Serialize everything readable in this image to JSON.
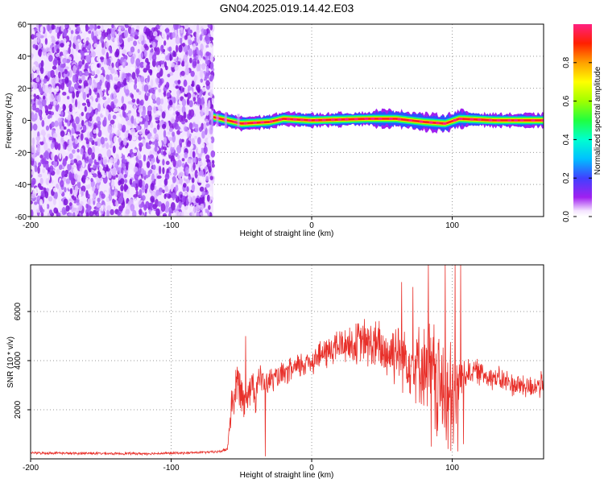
{
  "title": "GN04.2025.019.14.42.E03",
  "chart_data": [
    {
      "type": "heatmap",
      "xlabel": "Height of straight line (km)",
      "ylabel": "Frequency (Hz)",
      "xlim": [
        -200,
        165
      ],
      "ylim": [
        -60,
        60
      ],
      "xticks": [
        -200,
        -100,
        0,
        100
      ],
      "yticks": [
        -60,
        -40,
        -20,
        0,
        20,
        40,
        60
      ],
      "grid": true,
      "colorbar": {
        "label": "Normalized spectral amplitude",
        "range": [
          0.0,
          1.0
        ],
        "ticks": [
          0.0,
          0.2,
          0.4,
          0.6,
          0.8
        ],
        "colormap": "rainbow"
      },
      "regions": [
        {
          "description": "broadband noise (low amplitude)",
          "x_range": [
            -200,
            -70
          ],
          "freq_range": [
            -60,
            60
          ],
          "amplitude": [
            0.0,
            0.15
          ]
        },
        {
          "description": "narrow signal band centered near 0 Hz",
          "x_range": [
            -70,
            165
          ],
          "freq_center": 0,
          "freq_halfwidth": 4,
          "peak_amplitude": 1.0
        }
      ],
      "signal_centerline": [
        {
          "x": -70,
          "f": 2
        },
        {
          "x": -60,
          "f": 0
        },
        {
          "x": -50,
          "f": -2
        },
        {
          "x": -30,
          "f": -1
        },
        {
          "x": -20,
          "f": 1
        },
        {
          "x": 0,
          "f": 0
        },
        {
          "x": 40,
          "f": 1
        },
        {
          "x": 60,
          "f": 1
        },
        {
          "x": 80,
          "f": -1
        },
        {
          "x": 95,
          "f": -2
        },
        {
          "x": 105,
          "f": 1
        },
        {
          "x": 130,
          "f": 0
        },
        {
          "x": 165,
          "f": 0
        }
      ]
    },
    {
      "type": "line",
      "xlabel": "Height of straight line (km)",
      "ylabel": "SNR (10 * v/v)",
      "xlim": [
        -200,
        165
      ],
      "ylim": [
        0,
        7900
      ],
      "xticks": [
        -200,
        -100,
        0,
        100
      ],
      "yticks": [
        2000,
        4000,
        6000
      ],
      "grid": true,
      "series": [
        {
          "color": "#e8302a",
          "x": [
            -200,
            -190,
            -180,
            -170,
            -160,
            -150,
            -140,
            -130,
            -120,
            -110,
            -100,
            -90,
            -80,
            -70,
            -65,
            -60,
            -57,
            -55,
            -52,
            -50,
            -48,
            -45,
            -42,
            -40,
            -38,
            -35,
            -32,
            -30,
            -25,
            -20,
            -15,
            -10,
            -5,
            0,
            5,
            10,
            15,
            20,
            25,
            30,
            35,
            40,
            45,
            50,
            55,
            60,
            65,
            70,
            75,
            80,
            85,
            88,
            90,
            92,
            95,
            98,
            100,
            102,
            105,
            110,
            115,
            120,
            125,
            130,
            135,
            140,
            145,
            150,
            155,
            160,
            165
          ],
          "y": [
            250,
            230,
            240,
            220,
            230,
            220,
            210,
            220,
            210,
            220,
            230,
            240,
            260,
            280,
            300,
            400,
            2200,
            2600,
            3100,
            2800,
            2400,
            2900,
            3000,
            2600,
            3400,
            3100,
            3000,
            3200,
            3300,
            3400,
            3600,
            3700,
            3900,
            4000,
            4200,
            4300,
            4500,
            4600,
            4700,
            4600,
            4800,
            4700,
            4600,
            4400,
            4300,
            4500,
            4200,
            4000,
            3900,
            3800,
            3600,
            3200,
            3000,
            2800,
            2600,
            2200,
            2000,
            2400,
            3300,
            3500,
            3600,
            3500,
            3400,
            3300,
            3200,
            3100,
            3000,
            3000,
            2900,
            3000,
            3000
          ],
          "amplitude": [
            60,
            60,
            60,
            60,
            60,
            60,
            60,
            60,
            60,
            60,
            60,
            60,
            60,
            60,
            60,
            100,
            900,
            1200,
            1300,
            900,
            900,
            900,
            900,
            900,
            800,
            700,
            600,
            600,
            600,
            600,
            600,
            700,
            700,
            700,
            700,
            800,
            900,
            900,
            900,
            1000,
            1100,
            1200,
            1300,
            1400,
            1500,
            1600,
            1600,
            1700,
            1800,
            2000,
            2600,
            3000,
            2800,
            2600,
            2800,
            3000,
            3000,
            3000,
            900,
            700,
            600,
            600,
            600,
            600,
            600,
            600,
            600,
            600,
            600,
            600,
            600
          ],
          "spikes": [
            {
              "x": 83,
              "y": 7900
            },
            {
              "x": 85,
              "y": 500
            },
            {
              "x": 95,
              "y": 7900
            },
            {
              "x": 97,
              "y": 400
            },
            {
              "x": 102,
              "y": 7900
            },
            {
              "x": 104,
              "y": 300
            },
            {
              "x": 106,
              "y": 7900
            },
            {
              "x": 108,
              "y": 600
            },
            {
              "x": 64,
              "y": 7200
            },
            {
              "x": 72,
              "y": 7000
            },
            {
              "x": -33,
              "y": 100
            },
            {
              "x": -47,
              "y": 5000
            }
          ]
        }
      ]
    }
  ]
}
